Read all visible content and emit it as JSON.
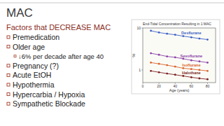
{
  "slide": {
    "title": "MAC",
    "heading": "Factors that DECREASE MAC",
    "bullets": [
      {
        "text": "Premedication",
        "sub": []
      },
      {
        "text": "Older age",
        "sub": [
          "↓6% per decade after age 40"
        ]
      },
      {
        "text": "Pregnancy (?)",
        "sub": []
      },
      {
        "text": "Acute EtOH",
        "sub": []
      },
      {
        "text": "Hypothermia",
        "sub": []
      },
      {
        "text": "Hypercarbia / Hypoxia",
        "sub": []
      },
      {
        "text": "Sympathetic Blockade",
        "sub": []
      }
    ]
  },
  "chart_data": {
    "type": "scatter",
    "title": "End-Tidal Concentration Resulting in 1 MAC",
    "x_label": "Age (years)",
    "y_label": "%",
    "x": [
      10,
      20,
      30,
      40,
      50,
      60,
      70,
      80
    ],
    "series": [
      {
        "name": "Desflurane",
        "color": "#3b5fc4",
        "values": [
          8.6,
          7.8,
          7.3,
          6.9,
          6.4,
          6.0,
          5.6,
          5.3
        ]
      },
      {
        "name": "Sevoflurane",
        "color": "#8a3fa8",
        "values": [
          2.5,
          2.3,
          2.1,
          2.0,
          1.85,
          1.7,
          1.6,
          1.5
        ]
      },
      {
        "name": "Isoflurane",
        "color": "#d9622b",
        "values": [
          1.5,
          1.4,
          1.3,
          1.2,
          1.1,
          1.05,
          1.0,
          0.95
        ]
      },
      {
        "name": "Halothane",
        "color": "#7a1f1f",
        "values": [
          0.95,
          0.88,
          0.82,
          0.77,
          0.72,
          0.67,
          0.63,
          0.6
        ]
      }
    ],
    "xlim": [
      0,
      90
    ],
    "xticks": [
      0,
      20,
      40,
      60,
      80
    ],
    "ylim": [
      0.5,
      10
    ],
    "yticks": [
      1,
      10
    ],
    "log": "y",
    "grid": false,
    "marker": "circle",
    "line_style": "solid"
  }
}
